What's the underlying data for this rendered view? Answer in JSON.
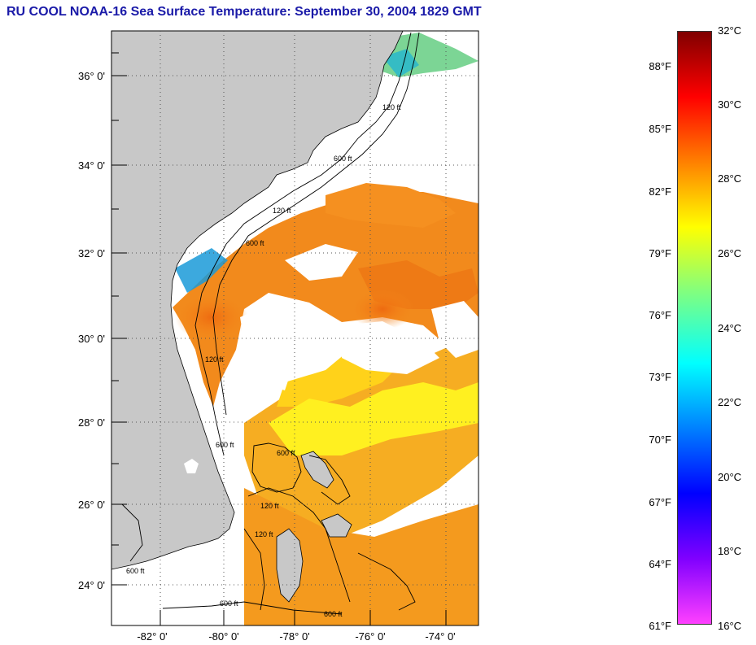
{
  "header": {
    "title": "RU COOL  NOAA-16  Sea Surface Temperature:  September 30, 2004 1829 GMT"
  },
  "map": {
    "lat_labels": [
      "36° 0'",
      "34° 0'",
      "32° 0'",
      "30° 0'",
      "28° 0'",
      "26° 0'",
      "24° 0'"
    ],
    "lon_labels": [
      "-82° 0'",
      "-80° 0'",
      "-78° 0'",
      "-76° 0'",
      "-74° 0'"
    ],
    "contour_labels": [
      "120 ft",
      "600 ft",
      "120 ft",
      "600 ft",
      "120 ft",
      "600 ft",
      "600 ft",
      "120 ft",
      "120 ft",
      "600 ft",
      "600 ft",
      "600 ft"
    ],
    "land_color": "#c8c8c8",
    "cloud_color": "#ffffff"
  },
  "colorbar": {
    "fahrenheit": [
      "88°F",
      "85°F",
      "82°F",
      "79°F",
      "76°F",
      "73°F",
      "70°F",
      "67°F",
      "64°F",
      "61°F"
    ],
    "celsius": [
      "32°C",
      "30°C",
      "28°C",
      "26°C",
      "24°C",
      "22°C",
      "20°C",
      "18°C",
      "16°C"
    ],
    "colors": [
      "#800000",
      "#ff0000",
      "#ff8000",
      "#ffff00",
      "#80ff80",
      "#00ffff",
      "#0080ff",
      "#0000ff",
      "#8000ff",
      "#ff40ff"
    ]
  }
}
